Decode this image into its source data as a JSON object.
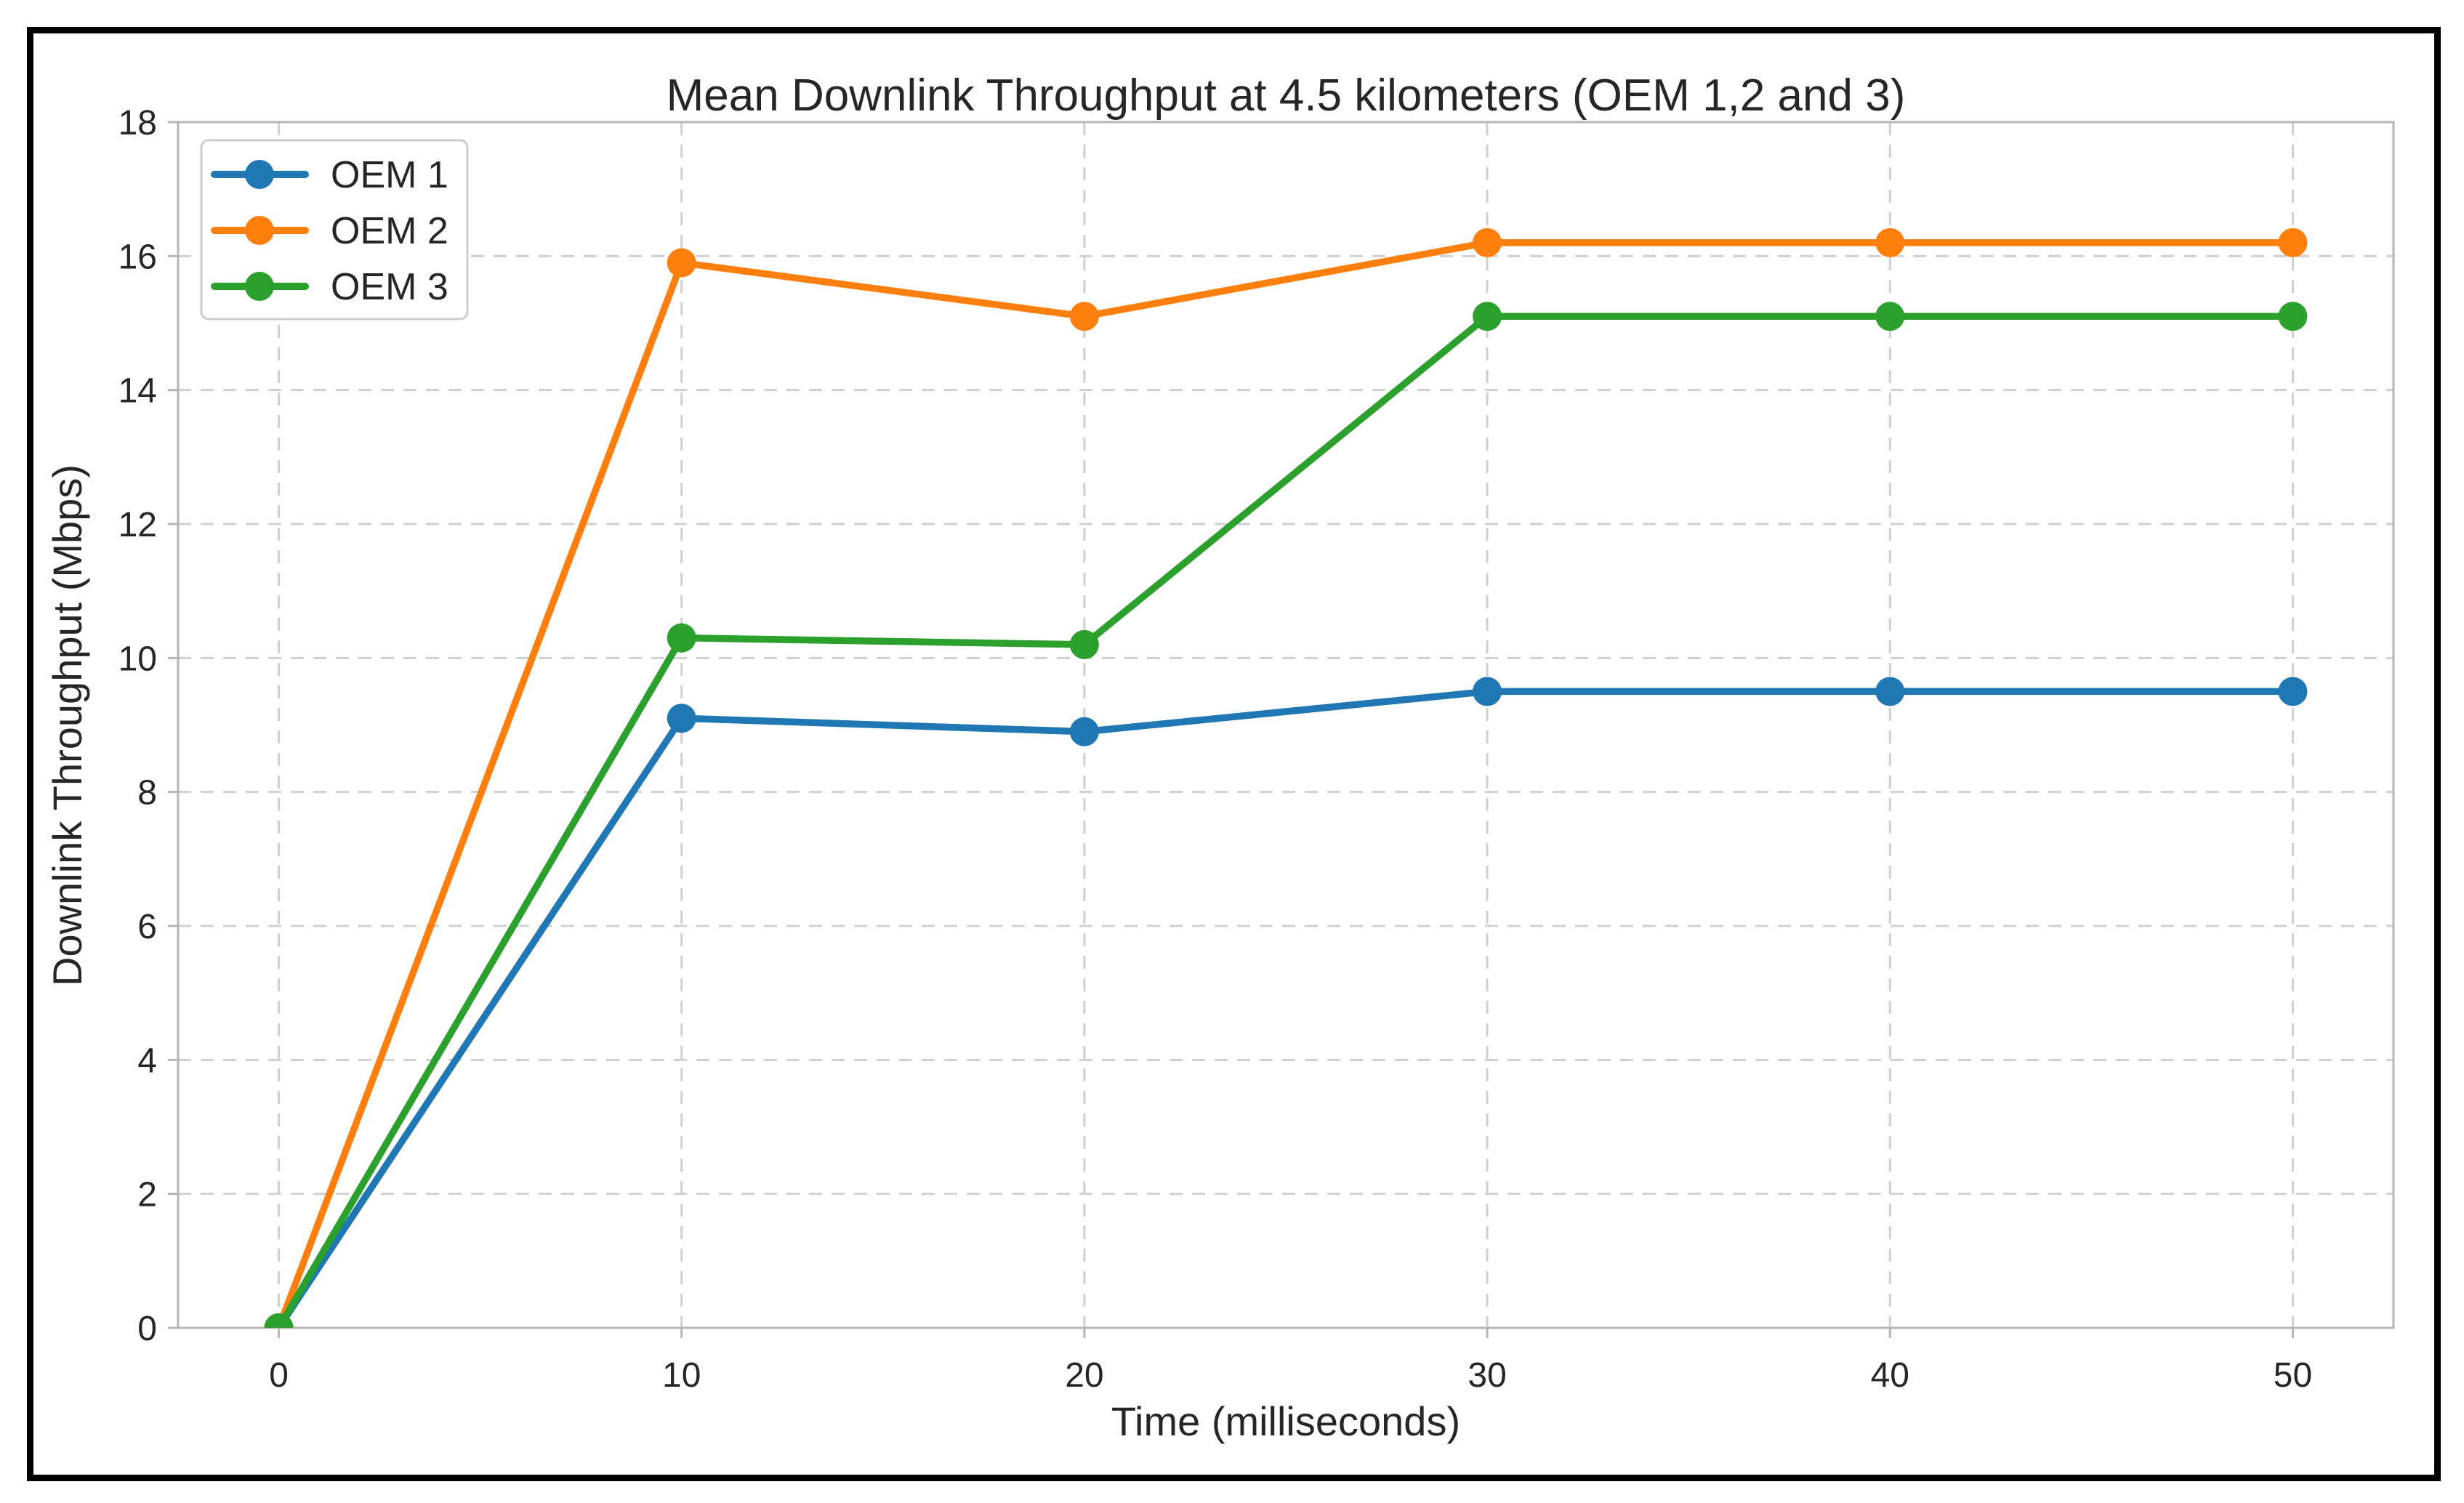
{
  "figure": {
    "border_color": "#000000",
    "background_color": "#ffffff",
    "grid_color": "#cfcfcf",
    "spine_color": "#b5b5b5",
    "text_color": "#262626"
  },
  "chart_data": {
    "type": "line",
    "title": "Mean Downlink Throughput at 4.5 kilometers (OEM 1,2 and 3)",
    "xlabel": "Time (milliseconds)",
    "ylabel": "Downlink Throughput (Mbps)",
    "x": [
      0,
      10,
      20,
      30,
      40,
      50
    ],
    "series": [
      {
        "name": "OEM 1",
        "color": "#1f77b4",
        "values": [
          0,
          9.1,
          8.9,
          9.5,
          9.5,
          9.5
        ]
      },
      {
        "name": "OEM 2",
        "color": "#ff7f0e",
        "values": [
          0,
          15.9,
          15.1,
          16.2,
          16.2,
          16.2
        ]
      },
      {
        "name": "OEM 3",
        "color": "#2ca02c",
        "values": [
          0,
          10.3,
          10.2,
          15.1,
          15.1,
          15.1
        ]
      }
    ],
    "xlim": [
      -2.5,
      52.5
    ],
    "ylim": [
      0,
      18
    ],
    "xticks": [
      0,
      10,
      20,
      30,
      40,
      50
    ],
    "yticks": [
      0,
      2,
      4,
      6,
      8,
      10,
      12,
      14,
      16,
      18
    ],
    "grid": {
      "visible": true,
      "style": "dashed",
      "axes": "both"
    },
    "legend": {
      "position": "upper-left",
      "entries": [
        "OEM 1",
        "OEM 2",
        "OEM 3"
      ]
    }
  }
}
